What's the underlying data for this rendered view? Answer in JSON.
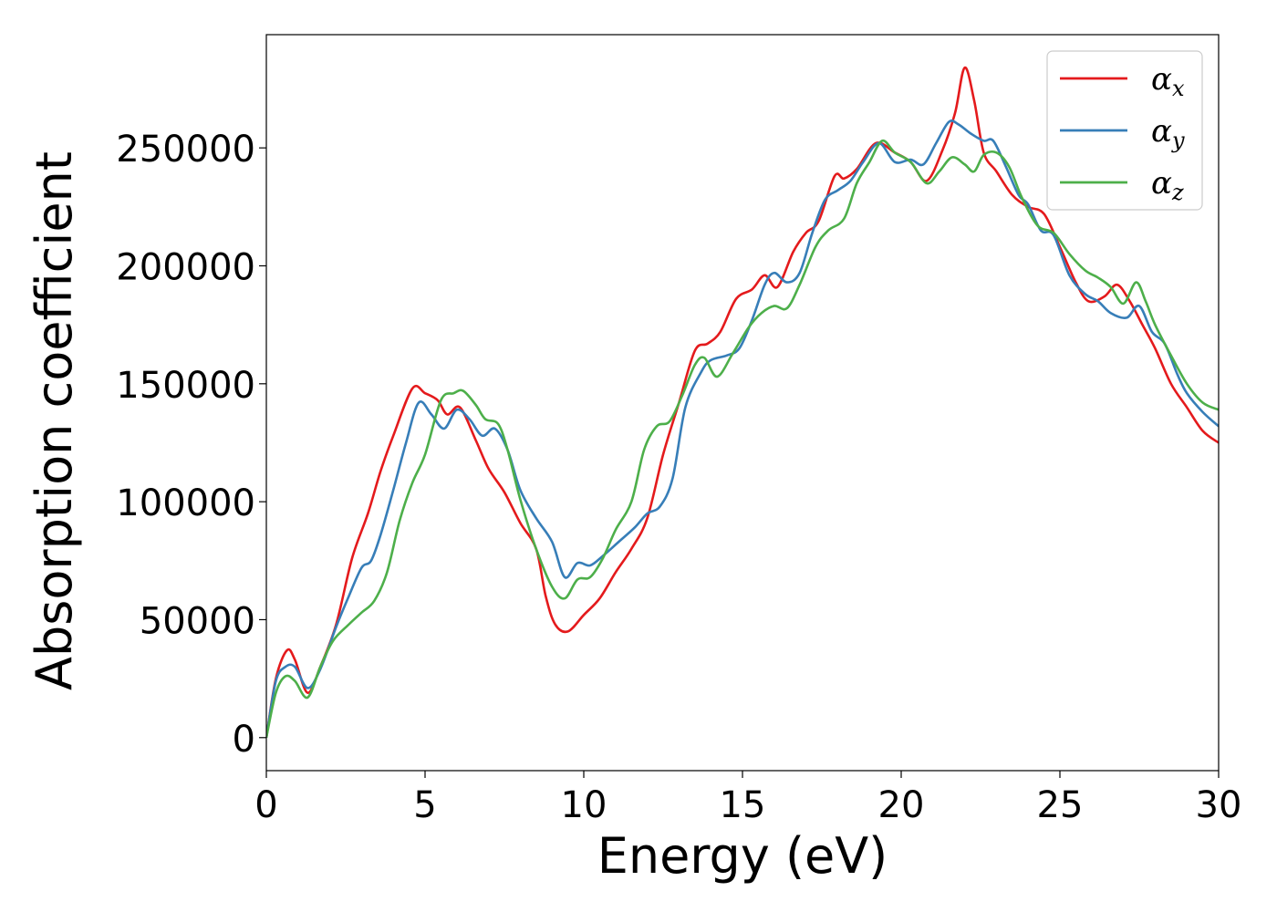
{
  "chart_data": {
    "type": "line",
    "title": "",
    "xlabel": "Energy (eV)",
    "ylabel": "Absorption coefficient",
    "xlim": [
      0,
      30
    ],
    "ylim": [
      -14000,
      298000
    ],
    "xticks": [
      0,
      5,
      10,
      15,
      20,
      25,
      30
    ],
    "yticks": [
      0,
      50000,
      100000,
      150000,
      200000,
      250000
    ],
    "grid": false,
    "legend_position": "top-right",
    "series": [
      {
        "name_base": "α",
        "name_sub": "x",
        "color": "#e41a1c",
        "points": [
          [
            0,
            0
          ],
          [
            0.3,
            25000
          ],
          [
            0.65,
            37000
          ],
          [
            0.9,
            33000
          ],
          [
            1.3,
            19000
          ],
          [
            1.7,
            30000
          ],
          [
            2.2,
            48000
          ],
          [
            2.7,
            76000
          ],
          [
            3.2,
            95000
          ],
          [
            3.6,
            113000
          ],
          [
            4.0,
            128000
          ],
          [
            4.6,
            148000
          ],
          [
            5.0,
            146000
          ],
          [
            5.4,
            143000
          ],
          [
            5.7,
            137000
          ],
          [
            6.1,
            140000
          ],
          [
            6.6,
            126000
          ],
          [
            7.0,
            114000
          ],
          [
            7.5,
            104000
          ],
          [
            8.0,
            91000
          ],
          [
            8.5,
            80000
          ],
          [
            8.8,
            60000
          ],
          [
            9.1,
            48000
          ],
          [
            9.5,
            45000
          ],
          [
            10.0,
            52000
          ],
          [
            10.5,
            59000
          ],
          [
            11.0,
            70000
          ],
          [
            11.5,
            80000
          ],
          [
            12.0,
            93000
          ],
          [
            12.5,
            120000
          ],
          [
            13.0,
            142000
          ],
          [
            13.5,
            164000
          ],
          [
            13.9,
            167000
          ],
          [
            14.3,
            172000
          ],
          [
            14.8,
            186000
          ],
          [
            15.3,
            190000
          ],
          [
            15.7,
            196000
          ],
          [
            16.1,
            191000
          ],
          [
            16.6,
            206000
          ],
          [
            17.0,
            214000
          ],
          [
            17.4,
            219000
          ],
          [
            17.9,
            238000
          ],
          [
            18.2,
            237000
          ],
          [
            18.6,
            241000
          ],
          [
            19.2,
            252000
          ],
          [
            19.8,
            248000
          ],
          [
            20.3,
            244000
          ],
          [
            20.8,
            236000
          ],
          [
            21.3,
            249000
          ],
          [
            21.7,
            265000
          ],
          [
            22.0,
            284000
          ],
          [
            22.3,
            270000
          ],
          [
            22.6,
            248000
          ],
          [
            23.0,
            240000
          ],
          [
            23.5,
            230000
          ],
          [
            24.0,
            225000
          ],
          [
            24.5,
            222000
          ],
          [
            25.0,
            208000
          ],
          [
            25.5,
            193000
          ],
          [
            25.9,
            185000
          ],
          [
            26.4,
            187000
          ],
          [
            26.8,
            192000
          ],
          [
            27.2,
            185000
          ],
          [
            27.6,
            175000
          ],
          [
            28.0,
            165000
          ],
          [
            28.5,
            150000
          ],
          [
            29.0,
            140000
          ],
          [
            29.5,
            130000
          ],
          [
            30.0,
            125000
          ]
        ]
      },
      {
        "name_base": "α",
        "name_sub": "y",
        "color": "#377eb8",
        "points": [
          [
            0,
            0
          ],
          [
            0.3,
            24000
          ],
          [
            0.6,
            30000
          ],
          [
            0.9,
            30000
          ],
          [
            1.3,
            21000
          ],
          [
            1.7,
            29000
          ],
          [
            2.2,
            47000
          ],
          [
            2.6,
            60000
          ],
          [
            3.0,
            72000
          ],
          [
            3.3,
            75000
          ],
          [
            3.6,
            86000
          ],
          [
            4.0,
            105000
          ],
          [
            4.4,
            125000
          ],
          [
            4.8,
            142000
          ],
          [
            5.2,
            137000
          ],
          [
            5.6,
            131000
          ],
          [
            6.0,
            139000
          ],
          [
            6.4,
            135000
          ],
          [
            6.8,
            128000
          ],
          [
            7.2,
            131000
          ],
          [
            7.6,
            122000
          ],
          [
            8.0,
            105000
          ],
          [
            8.5,
            93000
          ],
          [
            9.0,
            83000
          ],
          [
            9.4,
            68000
          ],
          [
            9.8,
            74000
          ],
          [
            10.2,
            73000
          ],
          [
            10.6,
            77000
          ],
          [
            11.1,
            83000
          ],
          [
            11.6,
            89000
          ],
          [
            12.0,
            95000
          ],
          [
            12.4,
            98000
          ],
          [
            12.8,
            110000
          ],
          [
            13.2,
            140000
          ],
          [
            13.7,
            155000
          ],
          [
            14.0,
            160000
          ],
          [
            14.5,
            162000
          ],
          [
            14.9,
            165000
          ],
          [
            15.3,
            177000
          ],
          [
            15.7,
            192000
          ],
          [
            16.0,
            197000
          ],
          [
            16.4,
            193000
          ],
          [
            16.8,
            197000
          ],
          [
            17.2,
            214000
          ],
          [
            17.6,
            228000
          ],
          [
            18.0,
            232000
          ],
          [
            18.4,
            236000
          ],
          [
            18.8,
            244000
          ],
          [
            19.3,
            252000
          ],
          [
            19.8,
            244000
          ],
          [
            20.3,
            245000
          ],
          [
            20.7,
            243000
          ],
          [
            21.1,
            252000
          ],
          [
            21.5,
            261000
          ],
          [
            21.8,
            260000
          ],
          [
            22.2,
            256000
          ],
          [
            22.6,
            253000
          ],
          [
            22.9,
            253000
          ],
          [
            23.3,
            242000
          ],
          [
            23.7,
            230000
          ],
          [
            24.0,
            226000
          ],
          [
            24.4,
            215000
          ],
          [
            24.8,
            213000
          ],
          [
            25.3,
            196000
          ],
          [
            25.8,
            188000
          ],
          [
            26.2,
            185000
          ],
          [
            26.6,
            180000
          ],
          [
            27.1,
            178000
          ],
          [
            27.5,
            183000
          ],
          [
            27.9,
            172000
          ],
          [
            28.3,
            167000
          ],
          [
            28.7,
            154000
          ],
          [
            29.0,
            146000
          ],
          [
            29.5,
            138000
          ],
          [
            30.0,
            132000
          ]
        ]
      },
      {
        "name_base": "α",
        "name_sub": "z",
        "color": "#4daf4a",
        "points": [
          [
            0,
            0
          ],
          [
            0.3,
            19000
          ],
          [
            0.6,
            26000
          ],
          [
            0.9,
            24000
          ],
          [
            1.3,
            17000
          ],
          [
            1.7,
            30000
          ],
          [
            2.1,
            41000
          ],
          [
            2.6,
            48000
          ],
          [
            3.0,
            53000
          ],
          [
            3.4,
            58000
          ],
          [
            3.8,
            70000
          ],
          [
            4.2,
            92000
          ],
          [
            4.6,
            108000
          ],
          [
            5.0,
            120000
          ],
          [
            5.5,
            143000
          ],
          [
            5.9,
            146000
          ],
          [
            6.2,
            147000
          ],
          [
            6.6,
            141000
          ],
          [
            6.9,
            135000
          ],
          [
            7.3,
            133000
          ],
          [
            7.6,
            122000
          ],
          [
            8.0,
            101000
          ],
          [
            8.5,
            80000
          ],
          [
            9.0,
            64000
          ],
          [
            9.4,
            59000
          ],
          [
            9.8,
            67000
          ],
          [
            10.2,
            68000
          ],
          [
            10.6,
            76000
          ],
          [
            11.0,
            88000
          ],
          [
            11.5,
            100000
          ],
          [
            11.9,
            122000
          ],
          [
            12.3,
            132000
          ],
          [
            12.7,
            134000
          ],
          [
            13.1,
            145000
          ],
          [
            13.5,
            158000
          ],
          [
            13.8,
            161000
          ],
          [
            14.2,
            153000
          ],
          [
            14.7,
            163000
          ],
          [
            15.2,
            174000
          ],
          [
            15.6,
            180000
          ],
          [
            16.0,
            183000
          ],
          [
            16.4,
            182000
          ],
          [
            16.8,
            192000
          ],
          [
            17.3,
            208000
          ],
          [
            17.7,
            215000
          ],
          [
            18.2,
            220000
          ],
          [
            18.6,
            235000
          ],
          [
            19.0,
            244000
          ],
          [
            19.4,
            253000
          ],
          [
            19.8,
            248000
          ],
          [
            20.3,
            244000
          ],
          [
            20.8,
            235000
          ],
          [
            21.2,
            240000
          ],
          [
            21.6,
            246000
          ],
          [
            22.0,
            243000
          ],
          [
            22.3,
            240000
          ],
          [
            22.6,
            247000
          ],
          [
            23.0,
            248000
          ],
          [
            23.4,
            242000
          ],
          [
            23.8,
            229000
          ],
          [
            24.3,
            217000
          ],
          [
            24.8,
            214000
          ],
          [
            25.3,
            205000
          ],
          [
            25.8,
            198000
          ],
          [
            26.2,
            195000
          ],
          [
            26.6,
            191000
          ],
          [
            27.0,
            184000
          ],
          [
            27.4,
            193000
          ],
          [
            27.7,
            185000
          ],
          [
            28.0,
            175000
          ],
          [
            28.5,
            162000
          ],
          [
            29.0,
            150000
          ],
          [
            29.5,
            142000
          ],
          [
            30.0,
            139000
          ]
        ]
      }
    ]
  }
}
